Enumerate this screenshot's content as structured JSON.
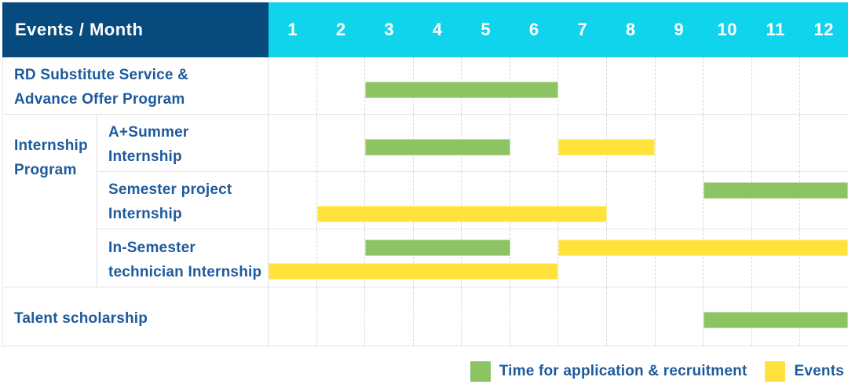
{
  "header": {
    "title": "Events / Month"
  },
  "theme": {
    "header_navy": "#074a7e",
    "header_cyan": "#0fd4ec",
    "label_blue": "#1d5a9c",
    "recruitment_green": "#8cc363",
    "events_yellow": "#ffe33c"
  },
  "chart_data": {
    "type": "gantt",
    "title": "Events / Month",
    "xlabel": "Month",
    "x_range": [
      1,
      12
    ],
    "month_labels": [
      "1",
      "2",
      "3",
      "4",
      "5",
      "6",
      "7",
      "8",
      "9",
      "10",
      "11",
      "12"
    ],
    "grid": true,
    "legend_position": "bottom-right",
    "colors": {
      "recruitment": "#8cc363",
      "events": "#ffe33c"
    },
    "group_label": "Internship\nProgram",
    "rows": [
      {
        "label": "RD Substitute Service &\nAdvance Offer Program",
        "group": null,
        "lines": [
          [
            {
              "type": "recruitment",
              "start": 3,
              "end": 6
            }
          ]
        ]
      },
      {
        "label": "A+Summer\nInternship",
        "group": "Internship Program",
        "lines": [
          [
            {
              "type": "recruitment",
              "start": 3,
              "end": 5
            },
            {
              "type": "events",
              "start": 7,
              "end": 8
            }
          ]
        ]
      },
      {
        "label": "Semester project\nInternship",
        "group": "Internship Program",
        "lines": [
          [
            {
              "type": "recruitment",
              "start": 10,
              "end": 12
            }
          ],
          [
            {
              "type": "events",
              "start": 2,
              "end": 7
            }
          ]
        ]
      },
      {
        "label": "In-Semester\ntechnician Internship",
        "group": "Internship Program",
        "lines": [
          [
            {
              "type": "recruitment",
              "start": 3,
              "end": 5
            },
            {
              "type": "events",
              "start": 7,
              "end": 12
            }
          ],
          [
            {
              "type": "events",
              "start": 1,
              "end": 6
            }
          ]
        ]
      },
      {
        "label": "Talent scholarship",
        "group": null,
        "lines": [
          [
            {
              "type": "recruitment",
              "start": 10,
              "end": 12
            }
          ]
        ]
      }
    ],
    "legend": [
      {
        "type": "recruitment",
        "label": "Time for application & recruitment"
      },
      {
        "type": "events",
        "label": "Events"
      }
    ]
  }
}
